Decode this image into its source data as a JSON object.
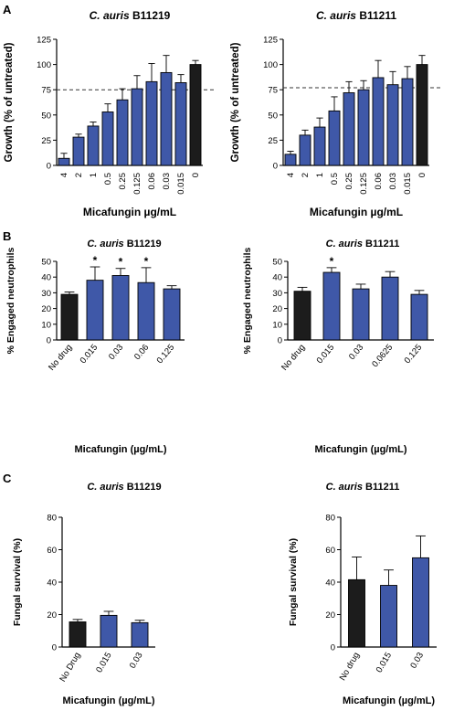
{
  "panel_labels": [
    "A",
    "B",
    "C"
  ],
  "colors": {
    "treated": "#3f58a8",
    "control": "#1c1c1c",
    "axis": "#000000",
    "reference_line": "#333333"
  },
  "chart_data": [
    {
      "panel": "A",
      "type": "bar",
      "title_italic": "C. auris",
      "title_strain": "B11219",
      "xlabel": "Micafungin µg/mL",
      "ylabel": "Growth (% of untreated)",
      "ylim": [
        0,
        125
      ],
      "yticks": [
        0,
        25,
        50,
        75,
        100,
        125
      ],
      "categories": [
        "4",
        "2",
        "1",
        "0.5",
        "0.25",
        "0.125",
        "0.06",
        "0.03",
        "0.015",
        "0"
      ],
      "values": [
        7,
        28,
        39,
        53,
        65,
        76,
        83,
        92,
        82,
        100
      ],
      "errors": [
        5,
        3,
        4,
        8,
        11,
        13,
        18,
        17,
        8,
        4
      ],
      "control_index": 9,
      "reference_line": 75,
      "significance": []
    },
    {
      "panel": "A",
      "type": "bar",
      "title_italic": "C. auris",
      "title_strain": "B11211",
      "xlabel": "Micafungin µg/mL",
      "ylabel": "Growth (% of untreated)",
      "ylim": [
        0,
        125
      ],
      "yticks": [
        0,
        25,
        50,
        75,
        100,
        125
      ],
      "categories": [
        "4",
        "2",
        "1",
        "0.5",
        "0.25",
        "0.125",
        "0.06",
        "0.03",
        "0.015",
        "0"
      ],
      "values": [
        11,
        30,
        38,
        54,
        72,
        75,
        87,
        80,
        86,
        100
      ],
      "errors": [
        3,
        5,
        9,
        14,
        11,
        9,
        17,
        13,
        12,
        9
      ],
      "control_index": 9,
      "reference_line": 77,
      "significance": []
    },
    {
      "panel": "B",
      "type": "bar",
      "title_italic": "C. auris",
      "title_strain": "B11219",
      "xlabel": "Micafungin (µg/mL)",
      "ylabel": "% Engaged neutrophils",
      "ylim": [
        0,
        50
      ],
      "yticks": [
        0,
        10,
        20,
        30,
        40,
        50
      ],
      "categories": [
        "No drug",
        "0.015",
        "0.03",
        "0.06",
        "0.125"
      ],
      "values": [
        29,
        38,
        41,
        36.5,
        32.5
      ],
      "errors": [
        1.5,
        8.5,
        4.5,
        9.5,
        2
      ],
      "control_index": 0,
      "significance": [
        "",
        "*",
        "*",
        "*",
        ""
      ]
    },
    {
      "panel": "B",
      "type": "bar",
      "title_italic": "C. auris",
      "title_strain": "B11211",
      "xlabel": "Micafungin (µg/mL)",
      "ylabel": "% Engaged neutrophils",
      "ylim": [
        0,
        50
      ],
      "yticks": [
        0,
        10,
        20,
        30,
        40,
        50
      ],
      "categories": [
        "No drug",
        "0.015",
        "0.03",
        "0.0625",
        "0.125"
      ],
      "values": [
        31,
        43,
        32.5,
        40,
        29
      ],
      "errors": [
        2.5,
        3,
        3,
        3.5,
        2.5
      ],
      "control_index": 0,
      "significance": [
        "",
        "*",
        "",
        "",
        ""
      ]
    },
    {
      "panel": "C",
      "type": "bar",
      "title_italic": "C. auris",
      "title_strain": "B11219",
      "xlabel": "Micafungin (µg/mL)",
      "ylabel": "Fungal survival (%)",
      "ylim": [
        0,
        80
      ],
      "yticks": [
        0,
        20,
        40,
        60,
        80
      ],
      "categories": [
        "No Drug",
        "0.015",
        "0.03"
      ],
      "values": [
        15.5,
        19.5,
        15
      ],
      "errors": [
        1.5,
        2.5,
        1.5
      ],
      "control_index": 0,
      "significance": []
    },
    {
      "panel": "C",
      "type": "bar",
      "title_italic": "C. auris",
      "title_strain": "B11211",
      "xlabel": "Micafungin (µg/mL)",
      "ylabel": "Fungal survival (%)",
      "ylim": [
        0,
        80
      ],
      "yticks": [
        0,
        20,
        40,
        60,
        80
      ],
      "categories": [
        "No drug",
        "0.015",
        "0.03"
      ],
      "values": [
        41.5,
        38,
        55
      ],
      "errors": [
        14,
        9.5,
        13.5
      ],
      "control_index": 0,
      "significance": []
    }
  ]
}
